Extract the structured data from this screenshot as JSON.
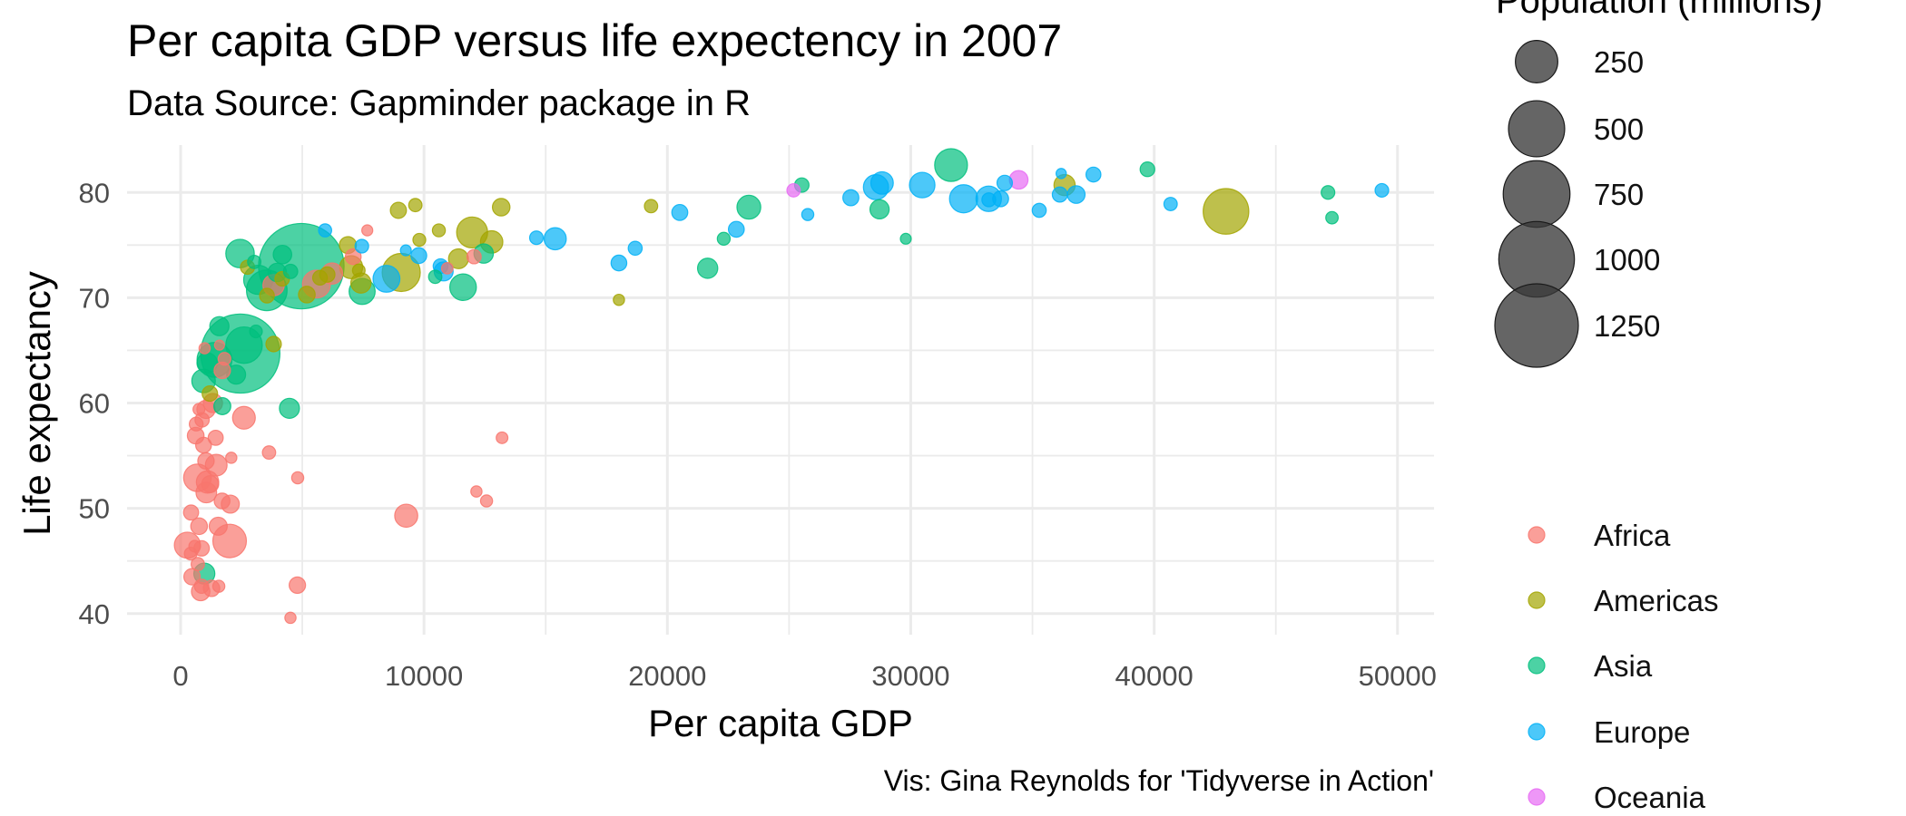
{
  "chart_data": {
    "type": "scatter",
    "title": "Per capita GDP versus life expectency in 2007",
    "subtitle": "Data Source: Gapminder package in R",
    "xlabel": "Per capita GDP",
    "ylabel": "Life expectancy",
    "caption": "Vis: Gina Reynolds for 'Tidyverse in Action'",
    "xlim": [
      -2200,
      51500
    ],
    "ylim": [
      38,
      84.5
    ],
    "x_ticks": [
      0,
      10000,
      20000,
      30000,
      40000,
      50000
    ],
    "x_tick_labels": [
      "0",
      "10000",
      "20000",
      "30000",
      "40000",
      "50000"
    ],
    "y_ticks": [
      40,
      50,
      60,
      70,
      80
    ],
    "y_tick_labels": [
      "40",
      "50",
      "60",
      "70",
      "80"
    ],
    "grid": true,
    "size_legend": {
      "title": "Population (millions)",
      "values": [
        250,
        500,
        750,
        1000,
        1250
      ],
      "labels": [
        "250",
        "500",
        "750",
        "1000",
        "1250"
      ]
    },
    "color_legend": {
      "entries": [
        {
          "name": "Africa",
          "color": "#F8766D"
        },
        {
          "name": "Americas",
          "color": "#A3A500"
        },
        {
          "name": "Asia",
          "color": "#00BF7D"
        },
        {
          "name": "Europe",
          "color": "#00B0F6"
        },
        {
          "name": "Oceania",
          "color": "#E76BF3"
        }
      ]
    },
    "series": [
      {
        "name": "Africa",
        "color": "#F8766D",
        "points": [
          [
            6223,
            72.3,
            33
          ],
          [
            4797,
            42.7,
            12
          ],
          [
            1441,
            56.7,
            8
          ],
          [
            12570,
            50.7,
            2
          ],
          [
            1217,
            52.3,
            14
          ],
          [
            430,
            49.6,
            8
          ],
          [
            2042,
            50.4,
            18
          ],
          [
            706,
            44.7,
            4
          ],
          [
            1704,
            50.7,
            10
          ],
          [
            986,
            65.2,
            1
          ],
          [
            278,
            46.5,
            65
          ],
          [
            3633,
            55.3,
            4
          ],
          [
            1545,
            48.3,
            18
          ],
          [
            2082,
            54.8,
            1
          ],
          [
            5581,
            71.3,
            80
          ],
          [
            12154,
            51.6,
            1
          ],
          [
            641,
            58.0,
            5
          ],
          [
            691,
            52.9,
            77
          ],
          [
            13207,
            56.7,
            1.5
          ],
          [
            753,
            59.4,
            1.7
          ],
          [
            1328,
            60.0,
            23
          ],
          [
            943,
            56.0,
            10
          ],
          [
            579,
            46.4,
            1.5
          ],
          [
            1463,
            54.1,
            36
          ],
          [
            1569,
            42.6,
            2
          ],
          [
            415,
            45.7,
            3
          ],
          [
            12057,
            73.9,
            6
          ],
          [
            1044,
            59.4,
            19
          ],
          [
            759,
            48.3,
            13
          ],
          [
            1042,
            54.5,
            12
          ],
          [
            1803,
            64.2,
            3
          ],
          [
            10957,
            72.8,
            1.3
          ],
          [
            3820,
            71.2,
            34
          ],
          [
            824,
            42.1,
            20
          ],
          [
            4811,
            52.9,
            2
          ],
          [
            620,
            56.9,
            13
          ],
          [
            2014,
            46.9,
            135
          ],
          [
            7670,
            76.4,
            0.8
          ],
          [
            863,
            46.2,
            9
          ],
          [
            1598,
            65.5,
            0.2
          ],
          [
            1712,
            63.1,
            12
          ],
          [
            862,
            42.6,
            6
          ],
          [
            9270,
            49.3,
            44
          ],
          [
            2602,
            58.6,
            42
          ],
          [
            4513,
            39.6,
            1
          ],
          [
            1107,
            52.5,
            40
          ],
          [
            883,
            58.4,
            6
          ],
          [
            7093,
            73.9,
            10
          ],
          [
            1056,
            51.5,
            30
          ],
          [
            1271,
            42.4,
            12
          ],
          [
            470,
            43.5,
            12
          ]
        ]
      },
      {
        "name": "Americas",
        "color": "#A3A500",
        "points": [
          [
            12779,
            75.3,
            40
          ],
          [
            3822,
            65.6,
            9
          ],
          [
            9065,
            72.4,
            190
          ],
          [
            36319,
            80.7,
            33
          ],
          [
            13172,
            78.6,
            16
          ],
          [
            7007,
            72.9,
            44
          ],
          [
            9645,
            78.8,
            4
          ],
          [
            8948,
            78.3,
            11
          ],
          [
            6025,
            72.2,
            9
          ],
          [
            6873,
            75.0,
            14
          ],
          [
            5728,
            71.9,
            7
          ],
          [
            5186,
            70.3,
            13
          ],
          [
            1202,
            60.9,
            9
          ],
          [
            3548,
            70.2,
            7
          ],
          [
            7321,
            72.6,
            2.8
          ],
          [
            11978,
            76.2,
            108
          ],
          [
            2749,
            72.9,
            5.7
          ],
          [
            9809,
            75.5,
            3.2
          ],
          [
            4173,
            71.8,
            6.7
          ],
          [
            7409,
            71.4,
            28
          ],
          [
            19329,
            78.7,
            4
          ],
          [
            18009,
            69.8,
            1
          ],
          [
            42952,
            78.2,
            301
          ],
          [
            10611,
            76.4,
            3.4
          ],
          [
            11416,
            73.7,
            26
          ]
        ]
      },
      {
        "name": "Asia",
        "color": "#00BF7D",
        "points": [
          [
            975,
            43.8,
            32
          ],
          [
            29796,
            75.6,
            0.7
          ],
          [
            1391,
            64.1,
            150
          ],
          [
            1714,
            59.7,
            14
          ],
          [
            4959,
            73.0,
            1319
          ],
          [
            39725,
            82.2,
            7
          ],
          [
            2452,
            64.7,
            1110
          ],
          [
            3541,
            70.7,
            224
          ],
          [
            11606,
            71.0,
            69
          ],
          [
            4471,
            59.5,
            27
          ],
          [
            25523,
            80.7,
            6.4
          ],
          [
            31656,
            82.6,
            127
          ],
          [
            4519,
            72.5,
            6
          ],
          [
            1593,
            67.3,
            23
          ],
          [
            23348,
            78.6,
            49
          ],
          [
            47307,
            77.6,
            2.5
          ],
          [
            10461,
            71.99,
            4
          ],
          [
            12452,
            74.2,
            24
          ],
          [
            3095,
            66.8,
            2.9
          ],
          [
            944,
            62.1,
            47
          ],
          [
            1091,
            63.8,
            29
          ],
          [
            22316,
            75.6,
            3.2
          ],
          [
            2606,
            65.5,
            169
          ],
          [
            3190,
            71.7,
            91
          ],
          [
            21655,
            72.8,
            28
          ],
          [
            47143,
            80.0,
            4.6
          ],
          [
            3970,
            72.4,
            20
          ],
          [
            4185,
            74.1,
            20
          ],
          [
            28718,
            78.4,
            23
          ],
          [
            7458,
            70.6,
            65
          ],
          [
            2442,
            74.2,
            85
          ],
          [
            3025,
            73.4,
            4
          ],
          [
            2281,
            62.7,
            22
          ]
        ]
      },
      {
        "name": "Europe",
        "color": "#00B0F6",
        "points": [
          [
            5937,
            76.4,
            3.6
          ],
          [
            36126,
            79.8,
            8.2
          ],
          [
            33693,
            79.4,
            10.4
          ],
          [
            7446,
            74.9,
            4.6
          ],
          [
            10681,
            73.0,
            7.3
          ],
          [
            14619,
            75.7,
            4.5
          ],
          [
            22833,
            76.5,
            10.2
          ],
          [
            35278,
            78.3,
            5.5
          ],
          [
            33207,
            79.3,
            5.2
          ],
          [
            30470,
            80.7,
            61
          ],
          [
            32170,
            79.4,
            82
          ],
          [
            27538,
            79.5,
            10.7
          ],
          [
            18009,
            73.3,
            10
          ],
          [
            36181,
            81.8,
            0.3
          ],
          [
            40676,
            78.9,
            4.1
          ],
          [
            28570,
            80.5,
            58
          ],
          [
            9254,
            74.5,
            0.7
          ],
          [
            36798,
            79.8,
            16.6
          ],
          [
            49357,
            80.2,
            4.6
          ],
          [
            15390,
            75.6,
            38.5
          ],
          [
            20510,
            78.1,
            10.6
          ],
          [
            10808,
            72.5,
            22.3
          ],
          [
            9787,
            74.0,
            10.2
          ],
          [
            18678,
            74.7,
            5.4
          ],
          [
            25768,
            77.9,
            2
          ],
          [
            28821,
            80.9,
            40.4
          ],
          [
            33860,
            80.9,
            9
          ],
          [
            37506,
            81.7,
            7.6
          ],
          [
            8458,
            71.8,
            71.2
          ],
          [
            33203,
            79.4,
            60.8
          ]
        ]
      },
      {
        "name": "Oceania",
        "color": "#E76BF3",
        "points": [
          [
            34435,
            81.2,
            20.4
          ],
          [
            25185,
            80.2,
            4.1
          ]
        ]
      }
    ]
  }
}
